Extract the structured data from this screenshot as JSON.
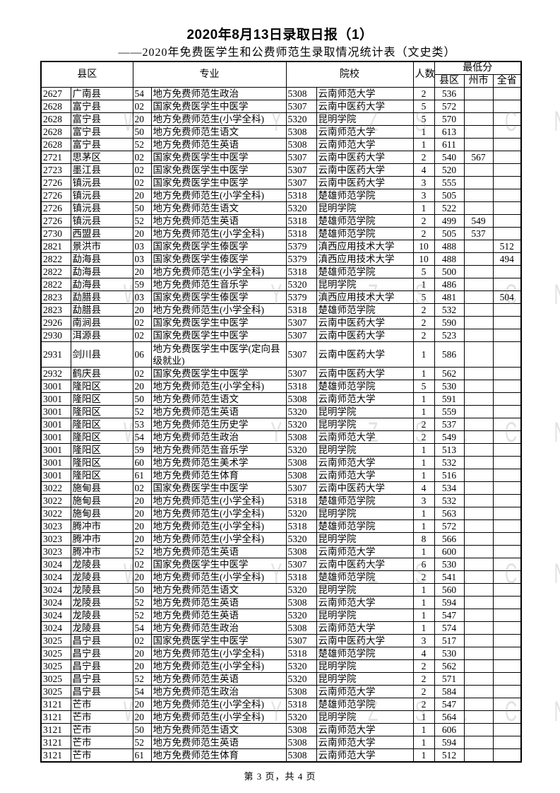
{
  "title": "2020年8月13日录取日报（1）",
  "subtitle": "——2020年免费医学生和公费师范生录取情况统计表（文史类）",
  "watermark": "WWW.YNZS.CN",
  "headers": {
    "county": "县区",
    "major": "专业",
    "school": "院校",
    "count": "人数",
    "min_score": "最低分",
    "min_county": "县区",
    "min_prefecture": "州市",
    "min_province": "全省"
  },
  "rows": [
    [
      "2627",
      "广南县",
      "54",
      "地方免费师范生政治",
      "5308",
      "云南师范大学",
      "2",
      "536",
      "",
      ""
    ],
    [
      "2628",
      "富宁县",
      "02",
      "国家免费医学生中医学",
      "5307",
      "云南中医药大学",
      "5",
      "572",
      "",
      ""
    ],
    [
      "2628",
      "富宁县",
      "20",
      "地方免费师范生(小学全科)",
      "5320",
      "昆明学院",
      "5",
      "570",
      "",
      ""
    ],
    [
      "2628",
      "富宁县",
      "50",
      "地方免费师范生语文",
      "5308",
      "云南师范大学",
      "1",
      "613",
      "",
      ""
    ],
    [
      "2628",
      "富宁县",
      "52",
      "地方免费师范生英语",
      "5308",
      "云南师范大学",
      "1",
      "611",
      "",
      ""
    ],
    [
      "2721",
      "思茅区",
      "02",
      "国家免费医学生中医学",
      "5307",
      "云南中医药大学",
      "2",
      "540",
      "567",
      ""
    ],
    [
      "2723",
      "墨江县",
      "02",
      "国家免费医学生中医学",
      "5307",
      "云南中医药大学",
      "4",
      "520",
      "",
      ""
    ],
    [
      "2726",
      "镇沅县",
      "02",
      "国家免费医学生中医学",
      "5307",
      "云南中医药大学",
      "3",
      "555",
      "",
      ""
    ],
    [
      "2726",
      "镇沅县",
      "20",
      "地方免费师范生(小学全科)",
      "5318",
      "楚雄师范学院",
      "3",
      "505",
      "",
      ""
    ],
    [
      "2726",
      "镇沅县",
      "50",
      "地方免费师范生语文",
      "5320",
      "昆明学院",
      "1",
      "522",
      "",
      ""
    ],
    [
      "2726",
      "镇沅县",
      "52",
      "地方免费师范生英语",
      "5318",
      "楚雄师范学院",
      "2",
      "499",
      "549",
      ""
    ],
    [
      "2730",
      "西盟县",
      "20",
      "地方免费师范生(小学全科)",
      "5318",
      "楚雄师范学院",
      "2",
      "505",
      "537",
      ""
    ],
    [
      "2821",
      "景洪市",
      "03",
      "国家免费医学生傣医学",
      "5379",
      "滇西应用技术大学",
      "10",
      "488",
      "",
      "512"
    ],
    [
      "2822",
      "勐海县",
      "03",
      "国家免费医学生傣医学",
      "5379",
      "滇西应用技术大学",
      "10",
      "488",
      "",
      "494"
    ],
    [
      "2822",
      "勐海县",
      "20",
      "地方免费师范生(小学全科)",
      "5318",
      "楚雄师范学院",
      "5",
      "500",
      "",
      ""
    ],
    [
      "2822",
      "勐海县",
      "59",
      "地方免费师范生音乐学",
      "5320",
      "昆明学院",
      "1",
      "486",
      "",
      ""
    ],
    [
      "2823",
      "勐腊县",
      "03",
      "国家免费医学生傣医学",
      "5379",
      "滇西应用技术大学",
      "5",
      "481",
      "",
      "504"
    ],
    [
      "2823",
      "勐腊县",
      "20",
      "地方免费师范生(小学全科)",
      "5318",
      "楚雄师范学院",
      "2",
      "532",
      "",
      ""
    ],
    [
      "2926",
      "南涧县",
      "02",
      "国家免费医学生中医学",
      "5307",
      "云南中医药大学",
      "2",
      "590",
      "",
      ""
    ],
    [
      "2930",
      "洱源县",
      "02",
      "国家免费医学生中医学",
      "5307",
      "云南中医药大学",
      "2",
      "523",
      "",
      ""
    ],
    [
      "2931",
      "剑川县",
      "06",
      "地方免费医学生中医学(定向县级就业)",
      "5307",
      "云南中医药大学",
      "1",
      "586",
      "",
      ""
    ],
    [
      "2932",
      "鹤庆县",
      "02",
      "国家免费医学生中医学",
      "5307",
      "云南中医药大学",
      "1",
      "562",
      "",
      ""
    ],
    [
      "3001",
      "隆阳区",
      "20",
      "地方免费师范生(小学全科)",
      "5318",
      "楚雄师范学院",
      "5",
      "530",
      "",
      ""
    ],
    [
      "3001",
      "隆阳区",
      "50",
      "地方免费师范生语文",
      "5308",
      "云南师范大学",
      "1",
      "591",
      "",
      ""
    ],
    [
      "3001",
      "隆阳区",
      "52",
      "地方免费师范生英语",
      "5320",
      "昆明学院",
      "1",
      "559",
      "",
      ""
    ],
    [
      "3001",
      "隆阳区",
      "53",
      "地方免费师范生历史学",
      "5320",
      "昆明学院",
      "2",
      "537",
      "",
      ""
    ],
    [
      "3001",
      "隆阳区",
      "54",
      "地方免费师范生政治",
      "5308",
      "云南师范大学",
      "2",
      "549",
      "",
      ""
    ],
    [
      "3001",
      "隆阳区",
      "59",
      "地方免费师范生音乐学",
      "5320",
      "昆明学院",
      "1",
      "513",
      "",
      ""
    ],
    [
      "3001",
      "隆阳区",
      "60",
      "地方免费师范生美术学",
      "5308",
      "云南师范大学",
      "1",
      "532",
      "",
      ""
    ],
    [
      "3001",
      "隆阳区",
      "61",
      "地方免费师范生体育",
      "5308",
      "云南师范大学",
      "1",
      "516",
      "",
      ""
    ],
    [
      "3022",
      "施甸县",
      "02",
      "国家免费医学生中医学",
      "5307",
      "云南中医药大学",
      "4",
      "534",
      "",
      ""
    ],
    [
      "3022",
      "施甸县",
      "20",
      "地方免费师范生(小学全科)",
      "5318",
      "楚雄师范学院",
      "3",
      "532",
      "",
      ""
    ],
    [
      "3022",
      "施甸县",
      "20",
      "地方免费师范生(小学全科)",
      "5320",
      "昆明学院",
      "1",
      "563",
      "",
      ""
    ],
    [
      "3023",
      "腾冲市",
      "20",
      "地方免费师范生(小学全科)",
      "5318",
      "楚雄师范学院",
      "1",
      "572",
      "",
      ""
    ],
    [
      "3023",
      "腾冲市",
      "20",
      "地方免费师范生(小学全科)",
      "5320",
      "昆明学院",
      "8",
      "566",
      "",
      ""
    ],
    [
      "3023",
      "腾冲市",
      "52",
      "地方免费师范生英语",
      "5308",
      "云南师范大学",
      "1",
      "600",
      "",
      ""
    ],
    [
      "3024",
      "龙陵县",
      "02",
      "国家免费医学生中医学",
      "5307",
      "云南中医药大学",
      "6",
      "530",
      "",
      ""
    ],
    [
      "3024",
      "龙陵县",
      "20",
      "地方免费师范生(小学全科)",
      "5318",
      "楚雄师范学院",
      "2",
      "541",
      "",
      ""
    ],
    [
      "3024",
      "龙陵县",
      "50",
      "地方免费师范生语文",
      "5320",
      "昆明学院",
      "1",
      "560",
      "",
      ""
    ],
    [
      "3024",
      "龙陵县",
      "52",
      "地方免费师范生英语",
      "5308",
      "云南师范大学",
      "1",
      "594",
      "",
      ""
    ],
    [
      "3024",
      "龙陵县",
      "52",
      "地方免费师范生英语",
      "5320",
      "昆明学院",
      "1",
      "547",
      "",
      ""
    ],
    [
      "3024",
      "龙陵县",
      "54",
      "地方免费师范生政治",
      "5308",
      "云南师范大学",
      "1",
      "574",
      "",
      ""
    ],
    [
      "3025",
      "昌宁县",
      "02",
      "国家免费医学生中医学",
      "5307",
      "云南中医药大学",
      "3",
      "517",
      "",
      ""
    ],
    [
      "3025",
      "昌宁县",
      "20",
      "地方免费师范生(小学全科)",
      "5318",
      "楚雄师范学院",
      "4",
      "530",
      "",
      ""
    ],
    [
      "3025",
      "昌宁县",
      "20",
      "地方免费师范生(小学全科)",
      "5320",
      "昆明学院",
      "2",
      "562",
      "",
      ""
    ],
    [
      "3025",
      "昌宁县",
      "52",
      "地方免费师范生英语",
      "5320",
      "昆明学院",
      "2",
      "571",
      "",
      ""
    ],
    [
      "3025",
      "昌宁县",
      "54",
      "地方免费师范生政治",
      "5308",
      "云南师范大学",
      "2",
      "584",
      "",
      ""
    ],
    [
      "3121",
      "芒市",
      "20",
      "地方免费师范生(小学全科)",
      "5318",
      "楚雄师范学院",
      "2",
      "547",
      "",
      ""
    ],
    [
      "3121",
      "芒市",
      "20",
      "地方免费师范生(小学全科)",
      "5320",
      "昆明学院",
      "1",
      "564",
      "",
      ""
    ],
    [
      "3121",
      "芒市",
      "50",
      "地方免费师范生语文",
      "5308",
      "云南师范大学",
      "1",
      "606",
      "",
      ""
    ],
    [
      "3121",
      "芒市",
      "52",
      "地方免费师范生英语",
      "5308",
      "云南师范大学",
      "1",
      "594",
      "",
      ""
    ],
    [
      "3121",
      "芒市",
      "61",
      "地方免费师范生体育",
      "5308",
      "云南师范大学",
      "1",
      "512",
      "",
      ""
    ]
  ],
  "footer": "第 3 页，共 4 页"
}
